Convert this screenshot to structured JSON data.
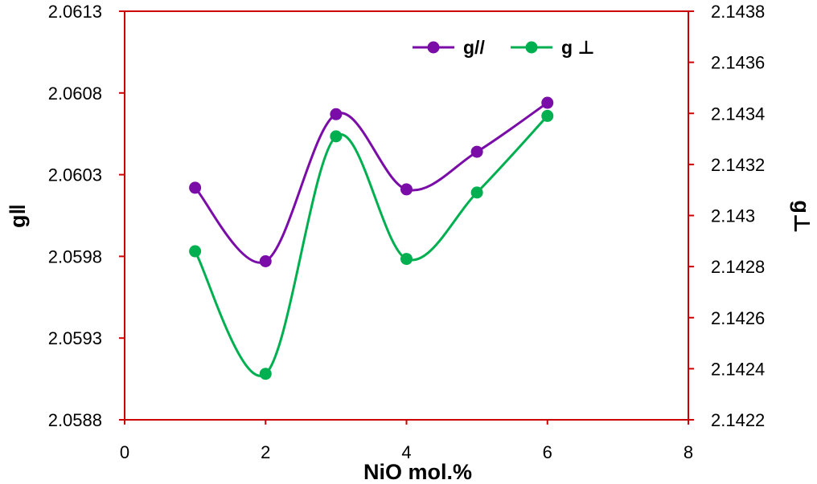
{
  "chart_data": {
    "type": "line",
    "title": "",
    "xlabel": "NiO mol.%",
    "ylabel_left": "g‖",
    "ylabel_right": "g⊥",
    "xlim": [
      0,
      8
    ],
    "x_ticks": [
      "0",
      "2",
      "4",
      "6",
      "8"
    ],
    "y_left_lim": [
      2.0588,
      2.0613
    ],
    "y_left_ticks": [
      "2.0588",
      "2.0593",
      "2.0598",
      "2.0603",
      "2.0608",
      "2.0613"
    ],
    "y_right_lim": [
      2.1422,
      2.1438
    ],
    "y_right_ticks": [
      "2.1422",
      "2.1424",
      "2.1426",
      "2.1428",
      "2.143",
      "2.1432",
      "2.1434",
      "2.1436",
      "2.1438"
    ],
    "grid": false,
    "legend_position": "top-right",
    "smooth": true,
    "series": [
      {
        "name": "g//",
        "axis": "left",
        "color": "#7a0da8",
        "x": [
          1,
          2,
          3,
          4,
          5,
          6
        ],
        "y": [
          2.06022,
          2.05977,
          2.06067,
          2.06021,
          2.06044,
          2.06074
        ]
      },
      {
        "name": "g ⊥",
        "axis": "right",
        "color": "#00b050",
        "x": [
          1,
          2,
          3,
          4,
          5,
          6
        ],
        "y": [
          2.14286,
          2.14238,
          2.14331,
          2.14283,
          2.14309,
          2.14339
        ]
      }
    ],
    "colors": {
      "axis_line": "#cc0000",
      "background": "#ffffff",
      "text": "#000000"
    }
  }
}
